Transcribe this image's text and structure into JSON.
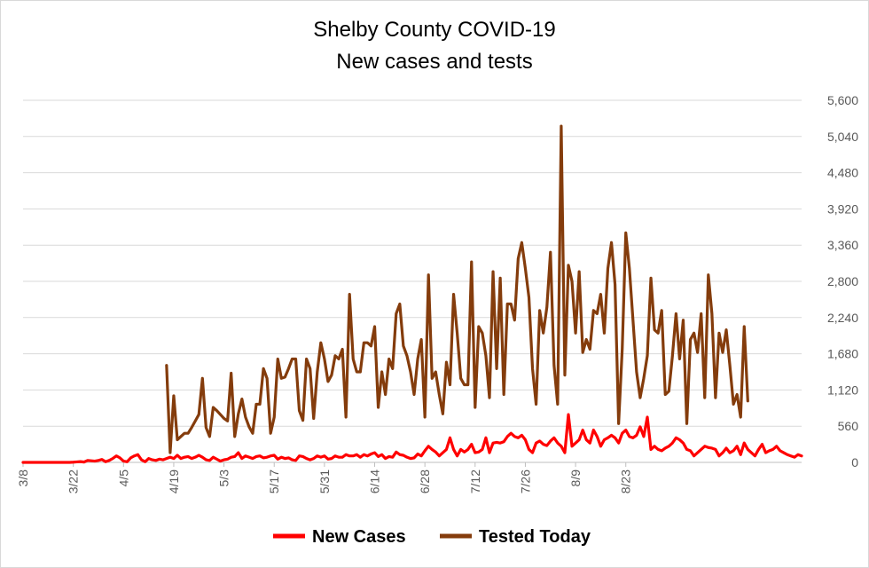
{
  "chart_data": {
    "type": "line",
    "title": "Shelby County COVID-19",
    "subtitle": "New cases and tests",
    "ylim": [
      0,
      5600
    ],
    "y_ticks": [
      "0",
      "560",
      "1,120",
      "1,680",
      "2,240",
      "2,800",
      "3,360",
      "3,920",
      "4,480",
      "5,040",
      "5,600"
    ],
    "y_tick_values": [
      0,
      560,
      1120,
      1680,
      2240,
      2800,
      3360,
      3920,
      4480,
      5040,
      5600
    ],
    "y_axis_side": "right",
    "x_ticks": [
      "3/8",
      "3/22",
      "4/5",
      "4/19",
      "5/3",
      "5/17",
      "5/31",
      "6/14",
      "6/28",
      "7/12",
      "7/26",
      "8/9",
      "8/23"
    ],
    "x_start": "3/8",
    "x_end": "9/4",
    "grid": true,
    "legend_position": "bottom",
    "series": [
      {
        "name": "New Cases",
        "color": "#ff0000",
        "values": [
          0,
          0,
          0,
          0,
          0,
          0,
          0,
          0,
          0,
          0,
          0,
          0,
          0,
          0,
          3,
          8,
          12,
          5,
          30,
          25,
          20,
          30,
          45,
          10,
          30,
          60,
          100,
          70,
          20,
          10,
          70,
          100,
          120,
          40,
          10,
          60,
          40,
          30,
          50,
          40,
          60,
          80,
          60,
          110,
          60,
          80,
          90,
          60,
          80,
          110,
          80,
          40,
          30,
          80,
          50,
          20,
          40,
          50,
          80,
          90,
          150,
          60,
          100,
          80,
          60,
          90,
          100,
          70,
          80,
          100,
          110,
          50,
          80,
          60,
          70,
          40,
          30,
          100,
          90,
          60,
          40,
          60,
          100,
          80,
          100,
          50,
          60,
          100,
          80,
          80,
          120,
          100,
          100,
          120,
          80,
          120,
          100,
          130,
          150,
          90,
          120,
          60,
          90,
          80,
          160,
          120,
          110,
          80,
          60,
          70,
          130,
          100,
          180,
          250,
          200,
          160,
          100,
          150,
          200,
          380,
          200,
          100,
          200,
          160,
          200,
          280,
          150,
          160,
          200,
          380,
          150,
          300,
          310,
          300,
          320,
          400,
          450,
          400,
          380,
          420,
          350,
          200,
          150,
          300,
          330,
          280,
          260,
          330,
          380,
          300,
          250,
          150,
          740,
          250,
          300,
          350,
          500,
          350,
          300,
          500,
          400,
          250,
          350,
          380,
          420,
          380,
          300,
          450,
          500,
          400,
          380,
          420,
          550,
          400,
          700,
          200,
          250,
          200,
          180,
          220,
          250,
          300,
          380,
          350,
          300,
          200,
          180,
          100,
          150,
          200,
          250,
          230,
          220,
          200,
          100,
          150,
          220,
          150,
          180,
          250,
          120,
          300,
          200,
          150,
          100,
          200,
          280,
          150,
          180,
          200,
          250,
          180,
          150,
          120,
          100,
          80,
          120,
          100
        ]
      },
      {
        "name": "Tested Today",
        "color": "#843c0c",
        "values": [
          null,
          null,
          null,
          null,
          null,
          null,
          null,
          null,
          null,
          null,
          null,
          null,
          null,
          null,
          null,
          null,
          null,
          null,
          null,
          null,
          null,
          null,
          null,
          null,
          null,
          null,
          null,
          null,
          null,
          null,
          null,
          null,
          null,
          null,
          null,
          null,
          null,
          null,
          null,
          null,
          1500,
          150,
          1030,
          350,
          400,
          450,
          450,
          540,
          640,
          740,
          1300,
          540,
          400,
          850,
          800,
          740,
          680,
          640,
          1380,
          400,
          750,
          980,
          700,
          550,
          450,
          900,
          900,
          1450,
          1300,
          450,
          700,
          1600,
          1300,
          1320,
          1450,
          1600,
          1600,
          800,
          650,
          1600,
          1450,
          680,
          1400,
          1850,
          1600,
          1250,
          1350,
          1650,
          1600,
          1750,
          700,
          2600,
          1600,
          1400,
          1400,
          1850,
          1850,
          1800,
          2100,
          850,
          1400,
          1050,
          1600,
          1450,
          2300,
          2450,
          1800,
          1650,
          1400,
          1050,
          1600,
          1900,
          700,
          2900,
          1300,
          1400,
          1050,
          750,
          1550,
          1200,
          2600,
          2000,
          1300,
          1200,
          1200,
          3100,
          850,
          2100,
          2000,
          1650,
          1000,
          2950,
          1450,
          2850,
          1050,
          2450,
          2450,
          2200,
          3150,
          3400,
          3000,
          2550,
          1450,
          900,
          2350,
          2000,
          2400,
          3250,
          1500,
          900,
          5200,
          1350,
          3050,
          2800,
          2000,
          2950,
          1700,
          1900,
          1750,
          2350,
          2300,
          2600,
          2000,
          3000,
          3400,
          2750,
          600,
          1750,
          3550,
          3000,
          2200,
          1400,
          1000,
          1300,
          1650,
          2850,
          2050,
          2000,
          2350,
          1050,
          1100,
          1650,
          2300,
          1600,
          2200,
          600,
          1900,
          2000,
          1700,
          2300,
          1000,
          2900,
          2300,
          1000,
          2000,
          1700,
          2050,
          1500,
          900,
          1050,
          700,
          2100,
          950
        ]
      }
    ]
  }
}
